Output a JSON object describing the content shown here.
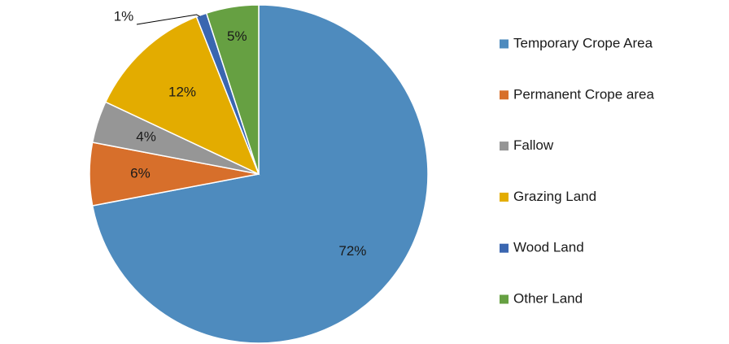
{
  "chart_data": {
    "type": "pie",
    "title": "",
    "legend_position": "right",
    "slices": [
      {
        "name": "Temporary Crope Area",
        "value": 72,
        "label": "72%",
        "color": "#4E8BBE"
      },
      {
        "name": "Permanent Crope area",
        "value": 6,
        "label": "6%",
        "color": "#D76F2B"
      },
      {
        "name": "Fallow",
        "value": 4,
        "label": "4%",
        "color": "#969696"
      },
      {
        "name": "Grazing Land",
        "value": 12,
        "label": "12%",
        "color": "#E3AC00"
      },
      {
        "name": "Wood Land",
        "value": 1,
        "label": "1%",
        "color": "#3A66B0"
      },
      {
        "name": "Other Land",
        "value": 5,
        "label": "5%",
        "color": "#66A042"
      }
    ]
  }
}
